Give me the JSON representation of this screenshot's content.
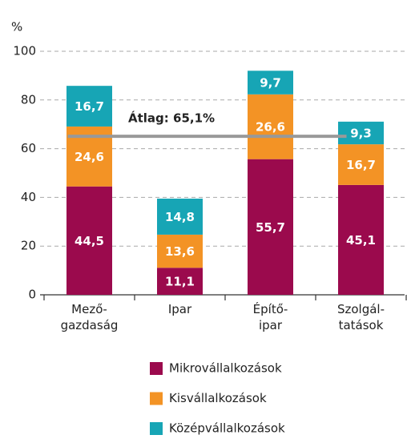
{
  "chart_data": {
    "type": "stacked_bar",
    "y_label": "%",
    "categories": [
      [
        "Mező-",
        "gazdaság"
      ],
      [
        "Ipar"
      ],
      [
        "Építő-",
        "ipar"
      ],
      [
        "Szolgál-",
        "tatások"
      ]
    ],
    "series": [
      {
        "name": "Mikrovállalkozások",
        "color": "#9b0a4d",
        "values": [
          44.5,
          11.1,
          55.7,
          45.1
        ],
        "value_labels": [
          "44,5",
          "11,1",
          "55,7",
          "45,1"
        ]
      },
      {
        "name": "Kisvállalkozások",
        "color": "#f39325",
        "values": [
          24.6,
          13.6,
          26.6,
          16.7
        ],
        "value_labels": [
          "24,6",
          "13,6",
          "26,6",
          "16,7"
        ]
      },
      {
        "name": "Középvállalkozások",
        "color": "#17a5b5",
        "values": [
          16.7,
          14.8,
          9.7,
          9.3
        ],
        "value_labels": [
          "16,7",
          "14,8",
          "9,7",
          "9,3"
        ]
      }
    ],
    "average": {
      "value": 65.1,
      "label": "Átlag: 65,1%",
      "color": "#999999"
    },
    "ylim": [
      0,
      100
    ],
    "yticks": [
      0,
      20,
      40,
      60,
      80,
      100
    ],
    "grid": true
  }
}
